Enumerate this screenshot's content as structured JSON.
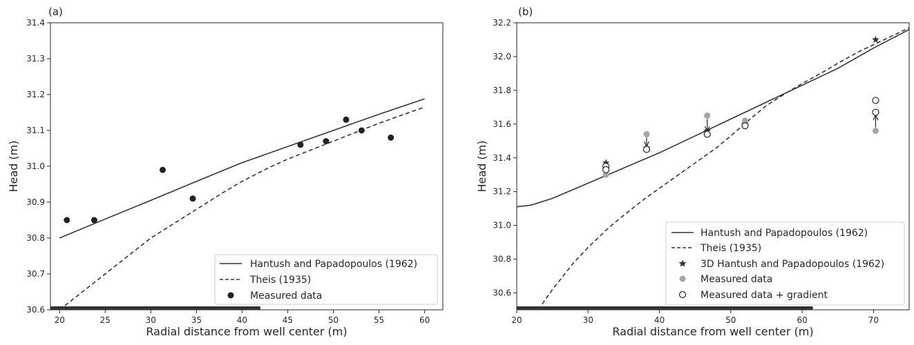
{
  "chart_data": [
    {
      "type": "line",
      "panel_label": "(a)",
      "xlabel": "Radial distance from well center (m)",
      "ylabel": "Head (m)",
      "xlim": [
        19,
        62
      ],
      "ylim": [
        30.6,
        31.4
      ],
      "xticks": [
        20,
        25,
        30,
        35,
        40,
        45,
        50,
        55,
        60
      ],
      "yticks": [
        30.6,
        30.7,
        30.8,
        30.9,
        31.0,
        31.1,
        31.2,
        31.3,
        31.4
      ],
      "ytick_labels": [
        "30.6",
        "30.7",
        "30.8",
        "30.9",
        "31.0",
        "31.1",
        "31.2",
        "31.3",
        "31.4"
      ],
      "grid": false,
      "legend_position": "lower-right",
      "series": [
        {
          "name": "Hantush and Papadopoulos (1962)",
          "style": "solid",
          "color": "#333333",
          "x": [
            20,
            25,
            30,
            35,
            40,
            45,
            50,
            55,
            60
          ],
          "y": [
            30.8,
            30.853,
            30.905,
            30.958,
            31.01,
            31.055,
            31.1,
            31.145,
            31.188
          ]
        },
        {
          "name": "Theis (1935)",
          "style": "dashed",
          "color": "#333333",
          "x": [
            20,
            22,
            25,
            28,
            30,
            33,
            35,
            38,
            40,
            43,
            45,
            48,
            50,
            53,
            55,
            58,
            60
          ],
          "y": [
            30.6,
            30.64,
            30.7,
            30.76,
            30.8,
            30.848,
            30.88,
            30.928,
            30.958,
            30.997,
            31.02,
            31.05,
            31.07,
            31.1,
            31.12,
            31.147,
            31.165
          ]
        },
        {
          "name": "Measured data",
          "type": "scatter",
          "marker": "filled-circle",
          "color": "#222222",
          "x": [
            20.8,
            23.8,
            31.3,
            34.6,
            46.4,
            49.2,
            51.4,
            53.1,
            56.3
          ],
          "y": [
            30.85,
            30.85,
            30.99,
            30.91,
            31.06,
            31.07,
            31.13,
            31.1,
            31.08
          ]
        }
      ],
      "well_bar": {
        "x": [
          19,
          42
        ],
        "color": "#333333"
      }
    },
    {
      "type": "line",
      "panel_label": "(b)",
      "xlabel": "Radial distance from well center (m)",
      "ylabel": "Head (m)",
      "xlim": [
        20,
        75
      ],
      "ylim": [
        30.5,
        32.2
      ],
      "xticks": [
        20,
        30,
        40,
        50,
        60,
        70
      ],
      "yticks": [
        30.6,
        30.8,
        31.0,
        31.2,
        31.4,
        31.6,
        31.8,
        32.0,
        32.2
      ],
      "ytick_labels": [
        "30.6",
        "30.8",
        "31.0",
        "31.2",
        "31.4",
        "31.6",
        "31.8",
        "32.0",
        "32.2"
      ],
      "grid": false,
      "legend_position": "lower-right",
      "series": [
        {
          "name": "Hantush and Papadopoulos (1962)",
          "style": "solid",
          "color": "#333333",
          "x": [
            20,
            22,
            25,
            30,
            35,
            40,
            45,
            50,
            55,
            60,
            65,
            70,
            75
          ],
          "y": [
            31.11,
            31.12,
            31.16,
            31.25,
            31.34,
            31.43,
            31.53,
            31.63,
            31.73,
            31.83,
            31.93,
            32.05,
            32.16
          ]
        },
        {
          "name": "Theis (1935)",
          "style": "dashed",
          "color": "#333333",
          "x": [
            23,
            25,
            28,
            30,
            33,
            35,
            38,
            40,
            43,
            45,
            48,
            50,
            53,
            55,
            58,
            60,
            63,
            65,
            68,
            70,
            73,
            75
          ],
          "y": [
            30.5,
            30.62,
            30.78,
            30.87,
            30.99,
            31.06,
            31.16,
            31.22,
            31.31,
            31.37,
            31.46,
            31.53,
            31.64,
            31.71,
            31.79,
            31.84,
            31.91,
            31.96,
            32.03,
            32.07,
            32.13,
            32.17
          ]
        },
        {
          "name": "3D Hantush and Papadopoulos (1962)",
          "type": "scatter",
          "marker": "star",
          "color": "#333333",
          "x": [
            32.5,
            38.2,
            46.7,
            52.0,
            70.3
          ],
          "y": [
            31.37,
            31.46,
            31.56,
            31.6,
            32.1
          ]
        },
        {
          "name": "Measured data",
          "type": "scatter",
          "marker": "filled-circle",
          "color": "#a6a6a6",
          "x": [
            32.5,
            38.2,
            46.7,
            52.0,
            70.3
          ],
          "y": [
            31.3,
            31.54,
            31.65,
            31.62,
            31.56
          ]
        },
        {
          "name": "Measured data + gradient",
          "type": "scatter",
          "marker": "open-circle",
          "color": "#222222",
          "x": [
            32.5,
            32.5,
            38.2,
            46.7,
            52.0,
            70.3,
            70.3
          ],
          "y": [
            31.35,
            31.33,
            31.45,
            31.54,
            31.59,
            31.67,
            31.74
          ]
        }
      ],
      "arrows": [
        {
          "x": 32.5,
          "from": 31.3,
          "to": 31.35
        },
        {
          "x": 38.2,
          "from": 31.54,
          "to": 31.45
        },
        {
          "x": 46.7,
          "from": 31.65,
          "to": 31.54
        },
        {
          "x": 70.3,
          "from": 31.56,
          "to": 31.67
        }
      ],
      "well_bar": {
        "x": [
          20,
          61.5
        ],
        "color": "#333333"
      }
    }
  ]
}
